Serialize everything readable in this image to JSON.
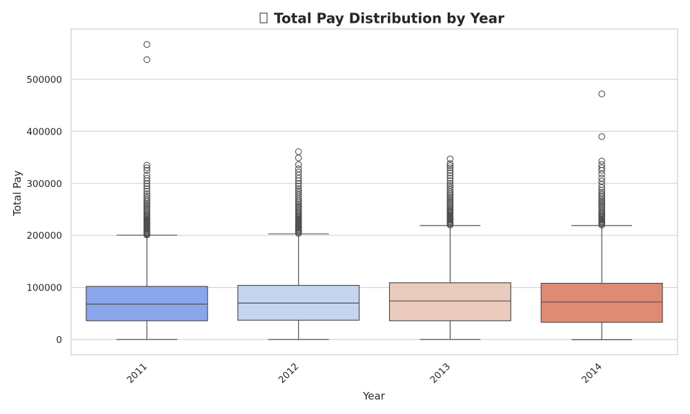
{
  "chart_data": {
    "type": "box",
    "title": "Total Pay Distribution by Year",
    "title_icon": "missing-glyph-icon",
    "xlabel": "Year",
    "ylabel": "Total Pay",
    "ylim": [
      -29000,
      598000
    ],
    "yticks": [
      0,
      100000,
      200000,
      300000,
      400000,
      500000
    ],
    "grid": true,
    "categories": [
      "2011",
      "2012",
      "2013",
      "2014"
    ],
    "boxes": [
      {
        "name": "2011",
        "color": "#8aa6ea",
        "whisker_low": 0,
        "q1": 36000,
        "median": 68000,
        "q3": 102000,
        "whisker_high": 200500,
        "outliers": [
          201000,
          202000,
          203500,
          205000,
          207000,
          209000,
          211000,
          213000,
          215000,
          217000,
          219000,
          221000,
          223000,
          225000,
          227000,
          229000,
          231000,
          233000,
          235000,
          237000,
          239000,
          241000,
          244000,
          247000,
          250000,
          253000,
          256000,
          259000,
          262000,
          265000,
          268000,
          272000,
          276000,
          280000,
          285000,
          290000,
          295000,
          300000,
          305000,
          310000,
          316000,
          325000,
          330000,
          335000,
          538000,
          567000
        ]
      },
      {
        "name": "2012",
        "color": "#c5d5f0",
        "whisker_low": 0,
        "q1": 37000,
        "median": 70000,
        "q3": 104000,
        "whisker_high": 203000,
        "outliers": [
          204000,
          206000,
          208000,
          210000,
          212000,
          214000,
          216000,
          218000,
          220000,
          222000,
          224000,
          226000,
          228000,
          230000,
          232000,
          234000,
          236000,
          238000,
          240000,
          242000,
          245000,
          248000,
          251000,
          254000,
          257000,
          260000,
          263000,
          266000,
          270000,
          274000,
          278000,
          282000,
          286000,
          290000,
          295000,
          300000,
          305000,
          310000,
          316000,
          322000,
          328000,
          336000,
          349000,
          361000
        ]
      },
      {
        "name": "2013",
        "color": "#eacbbd",
        "whisker_low": 0,
        "q1": 36000,
        "median": 74000,
        "q3": 109000,
        "whisker_high": 219000,
        "outliers": [
          220000,
          222000,
          224000,
          226000,
          228000,
          230000,
          232000,
          234000,
          236000,
          238000,
          240000,
          242000,
          244000,
          246000,
          248000,
          250000,
          253000,
          256000,
          259000,
          262000,
          265000,
          268000,
          271000,
          274000,
          277000,
          280000,
          284000,
          288000,
          292000,
          296000,
          300000,
          305000,
          310000,
          315000,
          320000,
          325000,
          330000,
          334000,
          338000,
          347000
        ]
      },
      {
        "name": "2014",
        "color": "#df8b73",
        "whisker_low": -500,
        "q1": 33000,
        "median": 72000,
        "q3": 108000,
        "whisker_high": 219000,
        "outliers": [
          220000,
          222000,
          224000,
          226000,
          228000,
          230000,
          232000,
          234000,
          236000,
          238000,
          240000,
          242000,
          245000,
          248000,
          251000,
          254000,
          257000,
          260000,
          263000,
          266000,
          269000,
          272000,
          275000,
          279000,
          283000,
          287000,
          292000,
          298000,
          304000,
          310000,
          318000,
          325000,
          330000,
          336000,
          343000,
          390000,
          472000
        ]
      }
    ]
  }
}
